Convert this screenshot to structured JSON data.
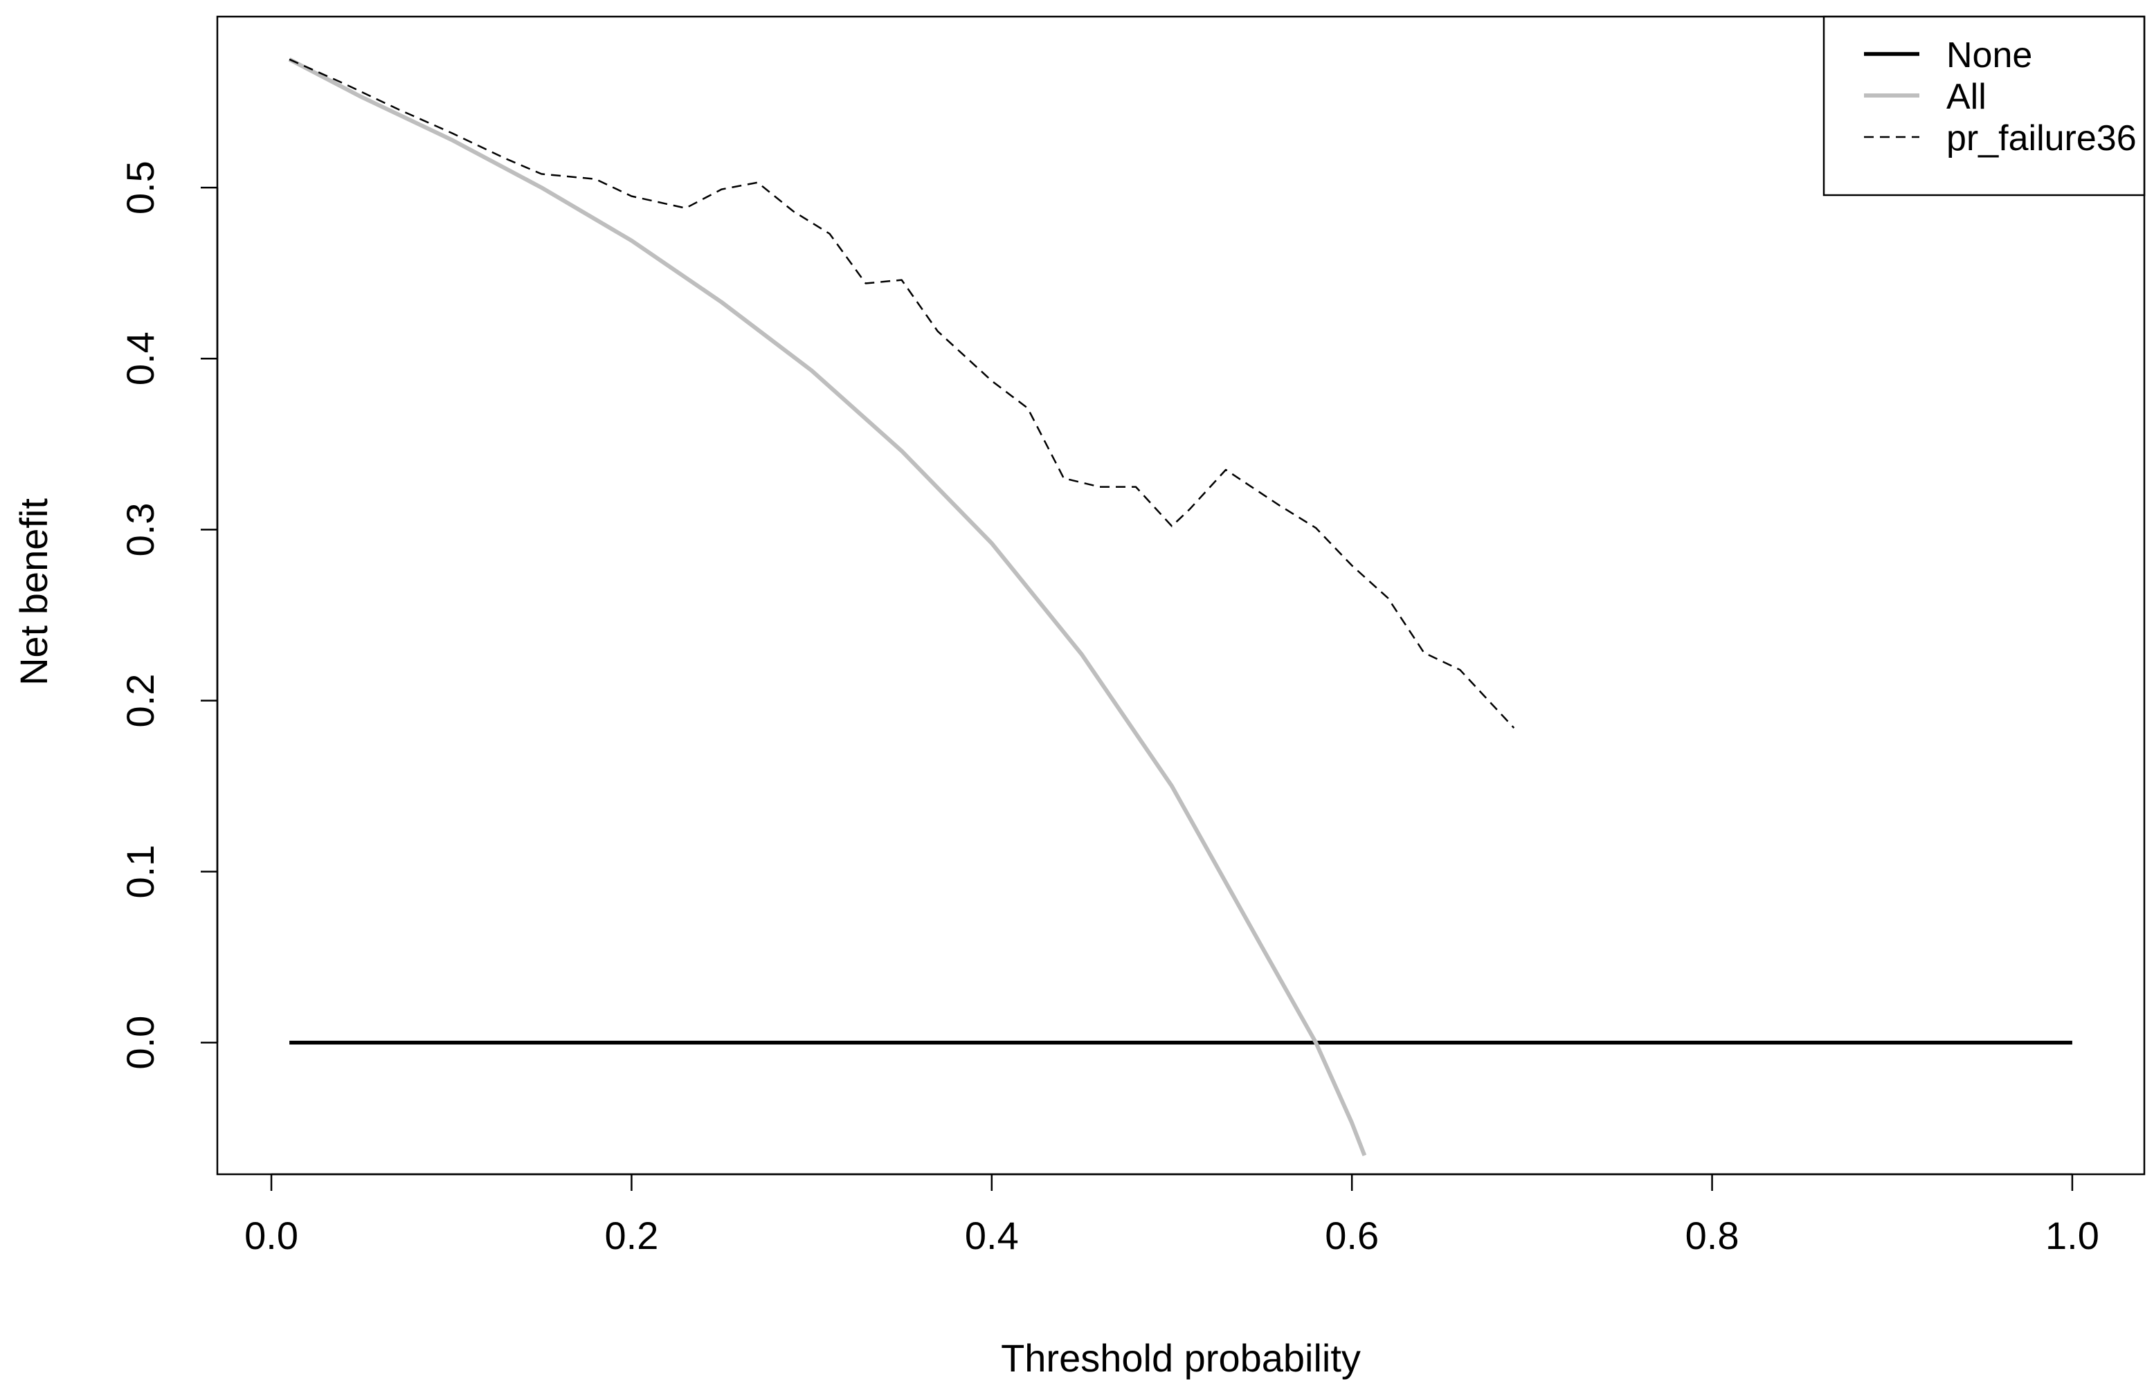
{
  "chart_data": {
    "type": "line",
    "title": "",
    "xlabel": "Threshold probability",
    "ylabel": "Net benefit",
    "xlim": [
      -0.03,
      1.04
    ],
    "ylim": [
      -0.077,
      0.6
    ],
    "x_ticks": [
      0.0,
      0.2,
      0.4,
      0.6,
      0.8,
      1.0
    ],
    "x_tick_labels": [
      "0.0",
      "0.2",
      "0.4",
      "0.6",
      "0.8",
      "1.0"
    ],
    "y_ticks": [
      0.0,
      0.1,
      0.2,
      0.3,
      0.4,
      0.5
    ],
    "y_tick_labels": [
      "0.0",
      "0.1",
      "0.2",
      "0.3",
      "0.4",
      "0.5"
    ],
    "grid": false,
    "legend_position": "top-right",
    "series": [
      {
        "name": "None",
        "color": "#000000",
        "style": "solid",
        "x": [
          0.01,
          1.0
        ],
        "y": [
          0.0,
          0.0
        ]
      },
      {
        "name": "All",
        "color": "#bebebe",
        "style": "solid",
        "x": [
          0.01,
          0.05,
          0.1,
          0.15,
          0.2,
          0.25,
          0.3,
          0.35,
          0.4,
          0.45,
          0.5,
          0.55,
          0.58,
          0.6,
          0.607
        ],
        "y": [
          0.575,
          0.553,
          0.528,
          0.5,
          0.469,
          0.433,
          0.393,
          0.346,
          0.292,
          0.227,
          0.15,
          0.056,
          0.0,
          -0.047,
          -0.066
        ]
      },
      {
        "name": "pr_failure36",
        "color": "#000000",
        "style": "dashed",
        "x": [
          0.01,
          0.04,
          0.07,
          0.1,
          0.13,
          0.15,
          0.18,
          0.2,
          0.23,
          0.25,
          0.27,
          0.29,
          0.31,
          0.33,
          0.35,
          0.37,
          0.4,
          0.42,
          0.44,
          0.46,
          0.48,
          0.5,
          0.51,
          0.53,
          0.56,
          0.58,
          0.6,
          0.62,
          0.64,
          0.66,
          0.69
        ],
        "y": [
          0.575,
          0.561,
          0.546,
          0.532,
          0.517,
          0.508,
          0.505,
          0.495,
          0.488,
          0.499,
          0.503,
          0.486,
          0.473,
          0.444,
          0.446,
          0.416,
          0.387,
          0.371,
          0.33,
          0.325,
          0.325,
          0.302,
          0.312,
          0.335,
          0.314,
          0.301,
          0.279,
          0.26,
          0.228,
          0.218,
          0.184
        ]
      }
    ]
  }
}
